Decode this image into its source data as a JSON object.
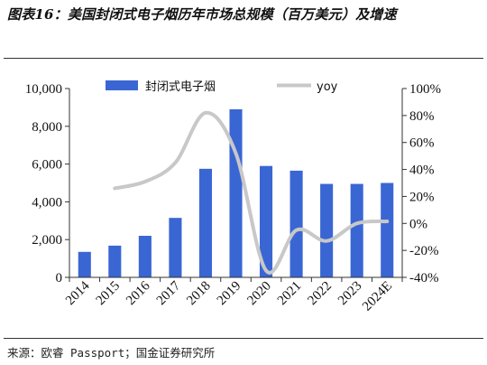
{
  "header": {
    "title": "图表16：美国封闭式电子烟历年市场总规模（百万美元）及增速"
  },
  "footer": {
    "source": "来源：欧睿 Passport；国金证券研究所"
  },
  "chart_data": {
    "type": "bar",
    "categories": [
      "2014",
      "2015",
      "2016",
      "2017",
      "2018",
      "2019",
      "2020",
      "2021",
      "2022",
      "2023",
      "2024E"
    ],
    "series": [
      {
        "name": "封闭式电子烟",
        "type": "bar",
        "axis": "left",
        "color": "#3a66d4",
        "values": [
          1350,
          1680,
          2200,
          3150,
          5750,
          8900,
          5900,
          5650,
          4950,
          4950,
          5000
        ]
      },
      {
        "name": "yoy",
        "type": "line",
        "axis": "right",
        "color": "#c8c8c8",
        "values": [
          null,
          26,
          31,
          45,
          82,
          52,
          -35,
          -5,
          -13,
          0,
          1.5
        ]
      }
    ],
    "y_left": {
      "min": 0,
      "max": 10000,
      "ticks": [
        "0",
        "2,000",
        "4,000",
        "6,000",
        "8,000",
        "10,000"
      ]
    },
    "y_right": {
      "min": -40,
      "max": 100,
      "ticks": [
        "-40%",
        "-20%",
        "0%",
        "20%",
        "40%",
        "60%",
        "80%",
        "100%"
      ]
    },
    "legend_position": "top",
    "grid": false,
    "xlabel": "",
    "ylabel": ""
  }
}
